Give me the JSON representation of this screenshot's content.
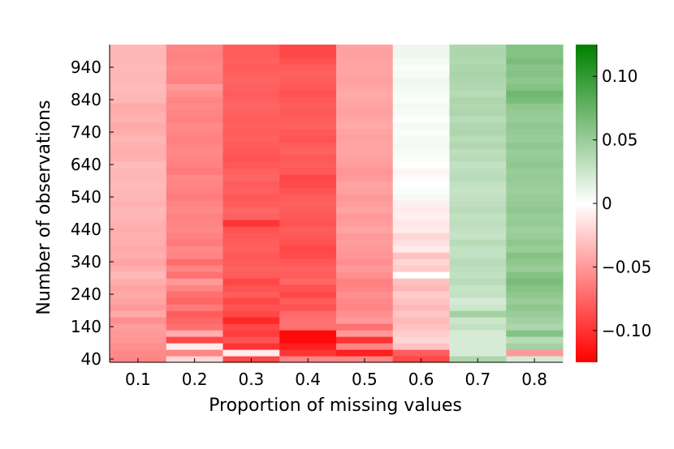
{
  "chart_data": {
    "type": "heatmap",
    "xlabel": "Proportion of missing values",
    "ylabel": "Number of observations",
    "x_categories": [
      "0.1",
      "0.2",
      "0.3",
      "0.4",
      "0.5",
      "0.6",
      "0.7",
      "0.8"
    ],
    "y_values": [
      40,
      60,
      80,
      100,
      120,
      140,
      160,
      180,
      200,
      220,
      240,
      260,
      280,
      300,
      320,
      340,
      360,
      380,
      400,
      420,
      440,
      460,
      480,
      500,
      520,
      540,
      560,
      580,
      600,
      620,
      640,
      660,
      680,
      700,
      720,
      740,
      760,
      780,
      800,
      820,
      840,
      860,
      880,
      900,
      920,
      940,
      960,
      980,
      1000
    ],
    "y_ticks": [
      40,
      140,
      240,
      340,
      440,
      540,
      640,
      740,
      840,
      940
    ],
    "y_tick_labels": [
      "40",
      "140",
      "240",
      "340",
      "440",
      "540",
      "640",
      "740",
      "840",
      "940"
    ],
    "columns": [
      {
        "x": "0.1",
        "values": [
          -0.06,
          -0.058,
          -0.055,
          -0.052,
          -0.05,
          -0.048,
          -0.055,
          -0.042,
          -0.05,
          -0.045,
          -0.042,
          -0.045,
          -0.04,
          -0.035,
          -0.04,
          -0.045,
          -0.04,
          -0.042,
          -0.04,
          -0.038,
          -0.04,
          -0.038,
          -0.036,
          -0.035,
          -0.038,
          -0.036,
          -0.035,
          -0.034,
          -0.036,
          -0.035,
          -0.034,
          -0.038,
          -0.04,
          -0.038,
          -0.036,
          -0.04,
          -0.042,
          -0.038,
          -0.04,
          -0.042,
          -0.036,
          -0.035,
          -0.034,
          -0.036,
          -0.035,
          -0.034,
          -0.036,
          -0.035,
          -0.035
        ]
      },
      {
        "x": "0.2",
        "values": [
          -0.02,
          -0.06,
          -0.01,
          -0.09,
          -0.04,
          -0.07,
          -0.075,
          -0.08,
          -0.065,
          -0.075,
          -0.07,
          -0.06,
          -0.05,
          -0.07,
          -0.06,
          -0.072,
          -0.06,
          -0.058,
          -0.065,
          -0.062,
          -0.058,
          -0.06,
          -0.062,
          -0.058,
          -0.06,
          -0.065,
          -0.062,
          -0.06,
          -0.058,
          -0.065,
          -0.062,
          -0.06,
          -0.058,
          -0.06,
          -0.062,
          -0.06,
          -0.058,
          -0.062,
          -0.06,
          -0.058,
          -0.06,
          -0.055,
          -0.05,
          -0.062,
          -0.06,
          -0.058,
          -0.06,
          -0.062,
          -0.06
        ]
      },
      {
        "x": "0.3",
        "values": [
          -0.09,
          -0.01,
          -0.1,
          -0.085,
          -0.095,
          -0.09,
          -0.105,
          -0.09,
          -0.085,
          -0.09,
          -0.08,
          -0.085,
          -0.09,
          -0.08,
          -0.078,
          -0.08,
          -0.082,
          -0.078,
          -0.08,
          -0.082,
          -0.085,
          -0.1,
          -0.078,
          -0.075,
          -0.08,
          -0.082,
          -0.078,
          -0.08,
          -0.076,
          -0.078,
          -0.082,
          -0.085,
          -0.082,
          -0.08,
          -0.078,
          -0.08,
          -0.078,
          -0.08,
          -0.078,
          -0.076,
          -0.078,
          -0.08,
          -0.078,
          -0.076,
          -0.078,
          -0.08,
          -0.078,
          -0.08,
          -0.08
        ]
      },
      {
        "x": "0.4",
        "values": [
          -0.06,
          -0.1,
          -0.11,
          -0.12,
          -0.12,
          -0.07,
          -0.07,
          -0.072,
          -0.085,
          -0.08,
          -0.09,
          -0.085,
          -0.075,
          -0.08,
          -0.078,
          -0.082,
          -0.088,
          -0.09,
          -0.085,
          -0.082,
          -0.08,
          -0.085,
          -0.082,
          -0.08,
          -0.078,
          -0.08,
          -0.085,
          -0.088,
          -0.09,
          -0.082,
          -0.08,
          -0.082,
          -0.078,
          -0.08,
          -0.085,
          -0.082,
          -0.078,
          -0.08,
          -0.082,
          -0.08,
          -0.082,
          -0.085,
          -0.082,
          -0.08,
          -0.078,
          -0.08,
          -0.085,
          -0.09,
          -0.09
        ]
      },
      {
        "x": "0.5",
        "values": [
          -0.06,
          -0.11,
          -0.06,
          -0.1,
          -0.05,
          -0.07,
          -0.05,
          -0.055,
          -0.06,
          -0.058,
          -0.055,
          -0.06,
          -0.062,
          -0.055,
          -0.05,
          -0.055,
          -0.052,
          -0.05,
          -0.048,
          -0.05,
          -0.045,
          -0.048,
          -0.05,
          -0.045,
          -0.048,
          -0.05,
          -0.046,
          -0.045,
          -0.05,
          -0.052,
          -0.048,
          -0.046,
          -0.045,
          -0.044,
          -0.046,
          -0.045,
          -0.042,
          -0.044,
          -0.046,
          -0.045,
          -0.044,
          -0.042,
          -0.044,
          -0.046,
          -0.045,
          -0.044,
          -0.045,
          -0.046,
          -0.046
        ]
      },
      {
        "x": "0.6",
        "values": [
          -0.09,
          -0.08,
          -0.03,
          -0.02,
          -0.025,
          -0.03,
          -0.035,
          -0.028,
          -0.035,
          -0.03,
          -0.025,
          -0.035,
          -0.03,
          0.0,
          -0.025,
          -0.02,
          -0.03,
          -0.01,
          -0.015,
          -0.02,
          -0.01,
          -0.012,
          -0.008,
          -0.01,
          -0.008,
          0.005,
          0.002,
          0.0,
          -0.002,
          -0.005,
          0.0,
          0.002,
          0.004,
          0.006,
          0.004,
          0.002,
          0.005,
          0.0,
          0.004,
          0.006,
          0.002,
          0.004,
          0.006,
          0.008,
          0.004,
          0.002,
          0.005,
          0.008,
          0.008
        ]
      },
      {
        "x": "0.7",
        "values": [
          0.04,
          0.02,
          0.02,
          0.02,
          0.02,
          0.03,
          0.025,
          0.045,
          0.025,
          0.02,
          0.03,
          0.028,
          0.035,
          0.03,
          0.032,
          0.035,
          0.03,
          0.03,
          0.035,
          0.028,
          0.03,
          0.032,
          0.03,
          0.035,
          0.032,
          0.03,
          0.028,
          0.03,
          0.035,
          0.032,
          0.03,
          0.035,
          0.032,
          0.038,
          0.035,
          0.04,
          0.038,
          0.035,
          0.04,
          0.038,
          0.04,
          0.035,
          0.038,
          0.04,
          0.042,
          0.04,
          0.038,
          0.04,
          0.04
        ]
      },
      {
        "x": "0.8",
        "values": [
          0.02,
          -0.05,
          0.045,
          0.035,
          0.06,
          0.04,
          0.045,
          0.05,
          0.055,
          0.05,
          0.055,
          0.06,
          0.065,
          0.06,
          0.05,
          0.055,
          0.06,
          0.05,
          0.055,
          0.05,
          0.048,
          0.052,
          0.05,
          0.055,
          0.052,
          0.05,
          0.048,
          0.05,
          0.052,
          0.05,
          0.055,
          0.052,
          0.05,
          0.055,
          0.05,
          0.052,
          0.055,
          0.05,
          0.052,
          0.055,
          0.065,
          0.07,
          0.06,
          0.055,
          0.06,
          0.058,
          0.065,
          0.06,
          0.06
        ]
      }
    ],
    "color_scale": {
      "min": -0.125,
      "max": 0.125,
      "stops": [
        "#ff0000",
        "#ffffff",
        "#008000"
      ],
      "ticks": [
        -0.1,
        -0.05,
        0,
        0.05,
        0.1
      ],
      "tick_labels": [
        "−0.10",
        "−0.05",
        "0",
        "0.05",
        "0.10"
      ]
    },
    "grid": false,
    "legend": "colorbar-right"
  }
}
